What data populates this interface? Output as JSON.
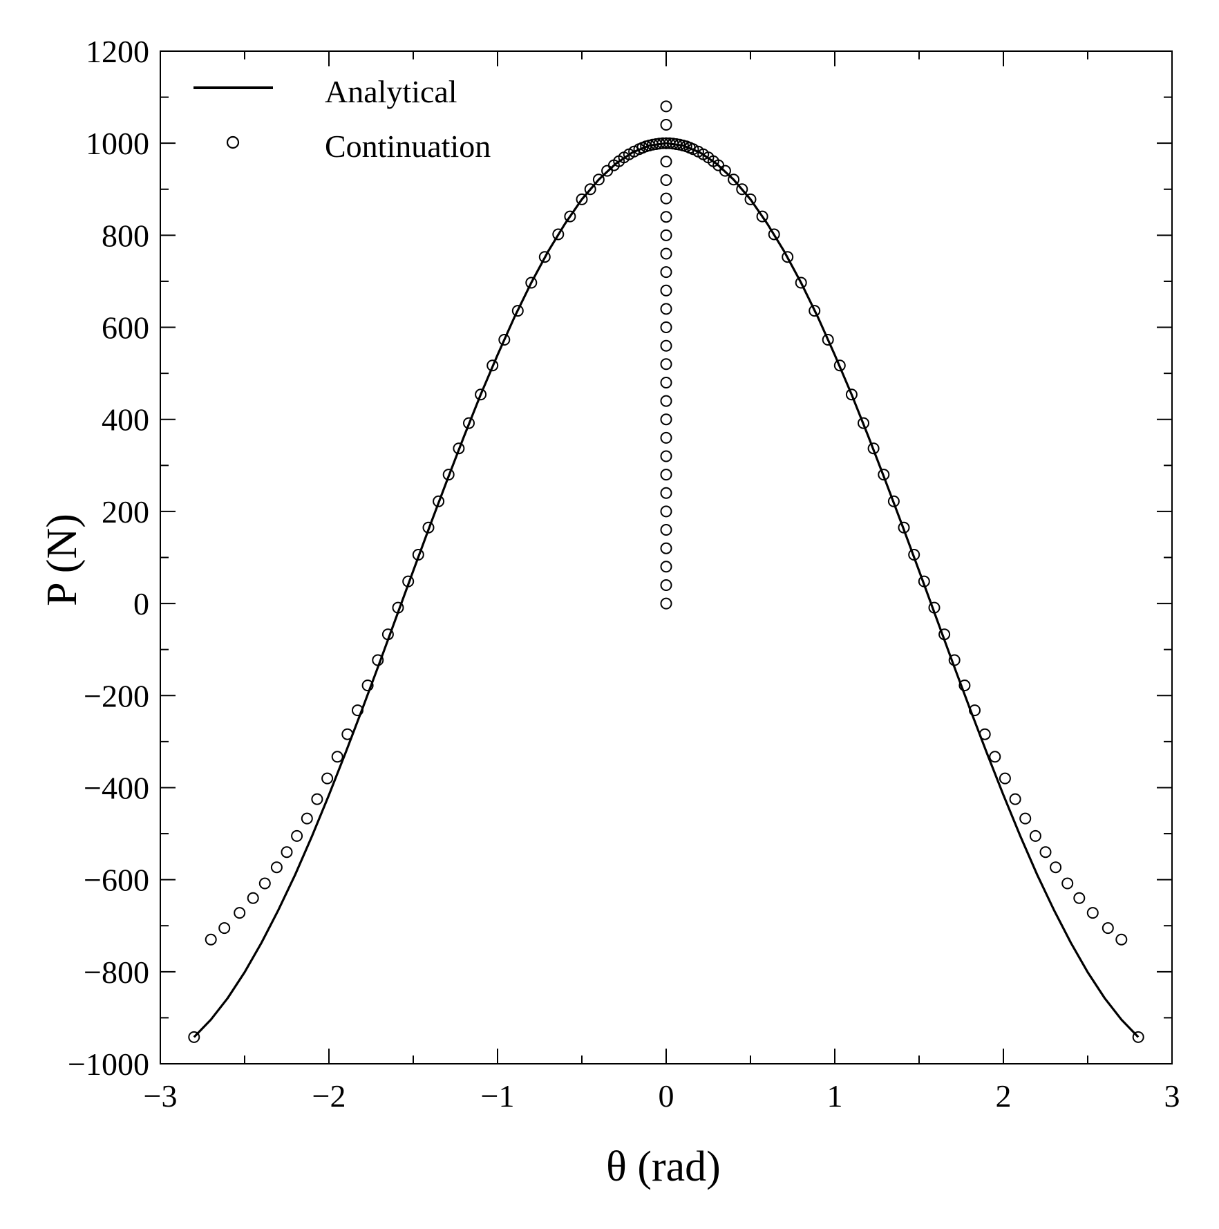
{
  "chart_data": {
    "type": "line",
    "title": "",
    "xlabel": "θ (rad)",
    "ylabel": "P (N)",
    "xlim": [
      -3,
      3
    ],
    "ylim": [
      -1000,
      1200
    ],
    "x_ticks": [
      -3,
      -2,
      -1,
      0,
      1,
      2,
      3
    ],
    "x_tick_labels": [
      "−3",
      "−2",
      "−1",
      "0",
      "1",
      "2",
      "3"
    ],
    "y_ticks": [
      -1000,
      -800,
      -600,
      -400,
      -200,
      0,
      200,
      400,
      600,
      800,
      1000,
      1200
    ],
    "y_tick_labels": [
      "−1000",
      "−800",
      "−600",
      "−400",
      "−200",
      "0",
      "200",
      "400",
      "600",
      "800",
      "1000",
      "1200"
    ],
    "grid": false,
    "legend_position": "top-left",
    "colors": {
      "line": "#000000",
      "marker": "#000000",
      "background": "#ffffff"
    },
    "series": [
      {
        "name": "Analytical",
        "style": "solid-line",
        "x": [
          -2.8,
          -2.7,
          -2.6,
          -2.5,
          -2.4,
          -2.3,
          -2.2,
          -2.1,
          -2.0,
          -1.9,
          -1.8,
          -1.7,
          -1.6,
          -1.5,
          -1.4,
          -1.3,
          -1.2,
          -1.1,
          -1.0,
          -0.9,
          -0.8,
          -0.7,
          -0.6,
          -0.5,
          -0.4,
          -0.3,
          -0.2,
          -0.1,
          0.0,
          0.1,
          0.2,
          0.3,
          0.4,
          0.5,
          0.6,
          0.7,
          0.8,
          0.9,
          1.0,
          1.1,
          1.2,
          1.3,
          1.4,
          1.5,
          1.6,
          1.7,
          1.8,
          1.9,
          2.0,
          2.1,
          2.2,
          2.3,
          2.4,
          2.5,
          2.6,
          2.7,
          2.8
        ],
        "y": [
          -942,
          -904,
          -857,
          -801,
          -737,
          -666,
          -589,
          -505,
          -416,
          -323,
          -227,
          -129,
          -29,
          71,
          170,
          267,
          362,
          454,
          540,
          622,
          697,
          765,
          825,
          878,
          921,
          955,
          980,
          995,
          1000,
          995,
          980,
          955,
          921,
          878,
          825,
          765,
          697,
          622,
          540,
          454,
          362,
          267,
          170,
          71,
          -29,
          -129,
          -227,
          -323,
          -416,
          -505,
          -589,
          -666,
          -737,
          -801,
          -857,
          -904,
          -942
        ]
      },
      {
        "name": "Continuation",
        "style": "open-circle-markers",
        "x": [
          0,
          0,
          0,
          0,
          0,
          0,
          0,
          0,
          0,
          0,
          0,
          0,
          0,
          0,
          0,
          0,
          0,
          0,
          0,
          0,
          0,
          0,
          0,
          0,
          0,
          0,
          0,
          0,
          0,
          -0.02,
          -0.04,
          -0.06,
          -0.08,
          -0.1,
          -0.12,
          -0.14,
          -0.16,
          -0.19,
          -0.22,
          -0.25,
          -0.28,
          -0.31,
          -0.35,
          -0.4,
          -0.45,
          -0.5,
          -0.57,
          -0.64,
          -0.72,
          -0.8,
          -0.88,
          -0.96,
          -1.03,
          -1.1,
          -1.17,
          -1.23,
          -1.29,
          -1.35,
          -1.41,
          -1.47,
          -1.53,
          -1.59,
          -1.65,
          -1.71,
          -1.77,
          -1.83,
          -1.89,
          -1.95,
          -2.01,
          -2.07,
          -2.13,
          -2.19,
          -2.25,
          -2.31,
          -2.38,
          -2.45,
          -2.53,
          -2.62,
          -2.7,
          -2.8,
          0.02,
          0.04,
          0.06,
          0.08,
          0.1,
          0.12,
          0.14,
          0.16,
          0.19,
          0.22,
          0.25,
          0.28,
          0.31,
          0.35,
          0.4,
          0.45,
          0.5,
          0.57,
          0.64,
          0.72,
          0.8,
          0.88,
          0.96,
          1.03,
          1.1,
          1.17,
          1.23,
          1.29,
          1.35,
          1.41,
          1.47,
          1.53,
          1.59,
          1.65,
          1.71,
          1.77,
          1.83,
          1.89,
          1.95,
          2.01,
          2.07,
          2.13,
          2.19,
          2.25,
          2.31,
          2.38,
          2.45,
          2.53,
          2.62,
          2.7,
          2.8
        ],
        "y": [
          0,
          40,
          80,
          120,
          160,
          200,
          240,
          280,
          320,
          360,
          400,
          440,
          480,
          520,
          560,
          600,
          640,
          680,
          720,
          760,
          800,
          840,
          880,
          920,
          960,
          1000,
          1040,
          1080,
          1000,
          1000,
          999,
          998,
          997,
          995,
          993,
          990,
          987,
          982,
          976,
          969,
          961,
          952,
          940,
          921,
          900,
          878,
          841,
          802,
          753,
          697,
          636,
          573,
          517,
          454,
          392,
          337,
          280,
          222,
          165,
          106,
          48,
          -9,
          -67,
          -123,
          -178,
          -232,
          -284,
          -333,
          -380,
          -425,
          -467,
          -505,
          -540,
          -573,
          -608,
          -640,
          -672,
          -705,
          -730,
          -942,
          1000,
          999,
          998,
          997,
          995,
          993,
          990,
          987,
          982,
          976,
          969,
          961,
          952,
          940,
          921,
          900,
          878,
          841,
          802,
          753,
          697,
          636,
          573,
          517,
          454,
          392,
          337,
          280,
          222,
          165,
          106,
          48,
          -9,
          -67,
          -123,
          -178,
          -232,
          -284,
          -333,
          -380,
          -425,
          -467,
          -505,
          -540,
          -573,
          -608,
          -640,
          -672,
          -705,
          -730,
          -942
        ]
      }
    ]
  }
}
